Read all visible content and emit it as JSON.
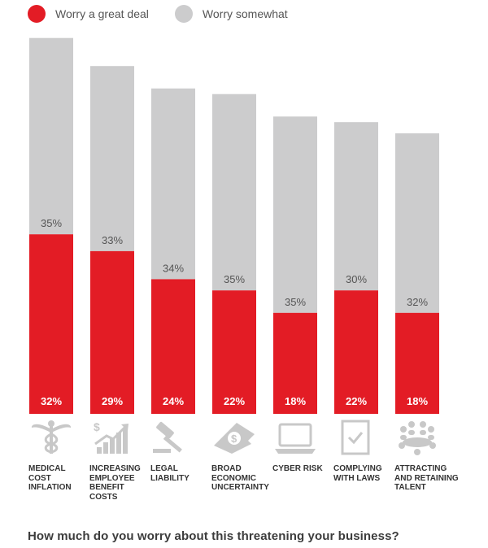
{
  "legend": {
    "series1": "Worry a great deal",
    "series2": "Worry somewhat"
  },
  "colors": {
    "great_deal": "#e31c25",
    "somewhat": "#cccccd",
    "icon": "#c8c8c8",
    "text": "#333333"
  },
  "question": "How much do you worry about this threatening your business?",
  "categories": [
    {
      "label_lines": [
        "MEDICAL",
        "COST",
        "INFLATION"
      ],
      "icon": "caduceus-icon"
    },
    {
      "label_lines": [
        "INCREASING",
        "EMPLOYEE",
        "BENEFIT",
        "COSTS"
      ],
      "icon": "rising-chart-dollar-icon"
    },
    {
      "label_lines": [
        "LEGAL",
        "LIABILITY"
      ],
      "icon": "gavel-icon"
    },
    {
      "label_lines": [
        "BROAD",
        "ECONOMIC",
        "UNCERTAINTY"
      ],
      "icon": "torn-dollar-bill-icon"
    },
    {
      "label_lines": [
        "CYBER RISK"
      ],
      "icon": "laptop-icon"
    },
    {
      "label_lines": [
        "COMPLYING",
        "WITH LAWS"
      ],
      "icon": "checklist-icon"
    },
    {
      "label_lines": [
        "ATTRACTING",
        "AND RETAINING",
        "TALENT"
      ],
      "icon": "people-meeting-icon"
    }
  ],
  "chart_data": {
    "type": "bar",
    "stacked": true,
    "categories": [
      "MEDICAL COST INFLATION",
      "INCREASING EMPLOYEE BENEFIT COSTS",
      "LEGAL LIABILITY",
      "BROAD ECONOMIC UNCERTAINTY",
      "CYBER RISK",
      "COMPLYING WITH LAWS",
      "ATTRACTING AND RETAINING TALENT"
    ],
    "series": [
      {
        "name": "Worry a great deal",
        "values": [
          32,
          29,
          24,
          22,
          18,
          22,
          18
        ],
        "labels": [
          "32%",
          "29%",
          "24%",
          "22%",
          "18%",
          "22%",
          "18%"
        ]
      },
      {
        "name": "Worry somewhat",
        "values": [
          35,
          33,
          34,
          35,
          35,
          30,
          32
        ],
        "labels": [
          "35%",
          "33%",
          "34%",
          "35%",
          "35%",
          "30%",
          "32%"
        ]
      }
    ],
    "ylim": [
      0,
      67
    ],
    "grid": false,
    "legend_position": "top-left"
  }
}
